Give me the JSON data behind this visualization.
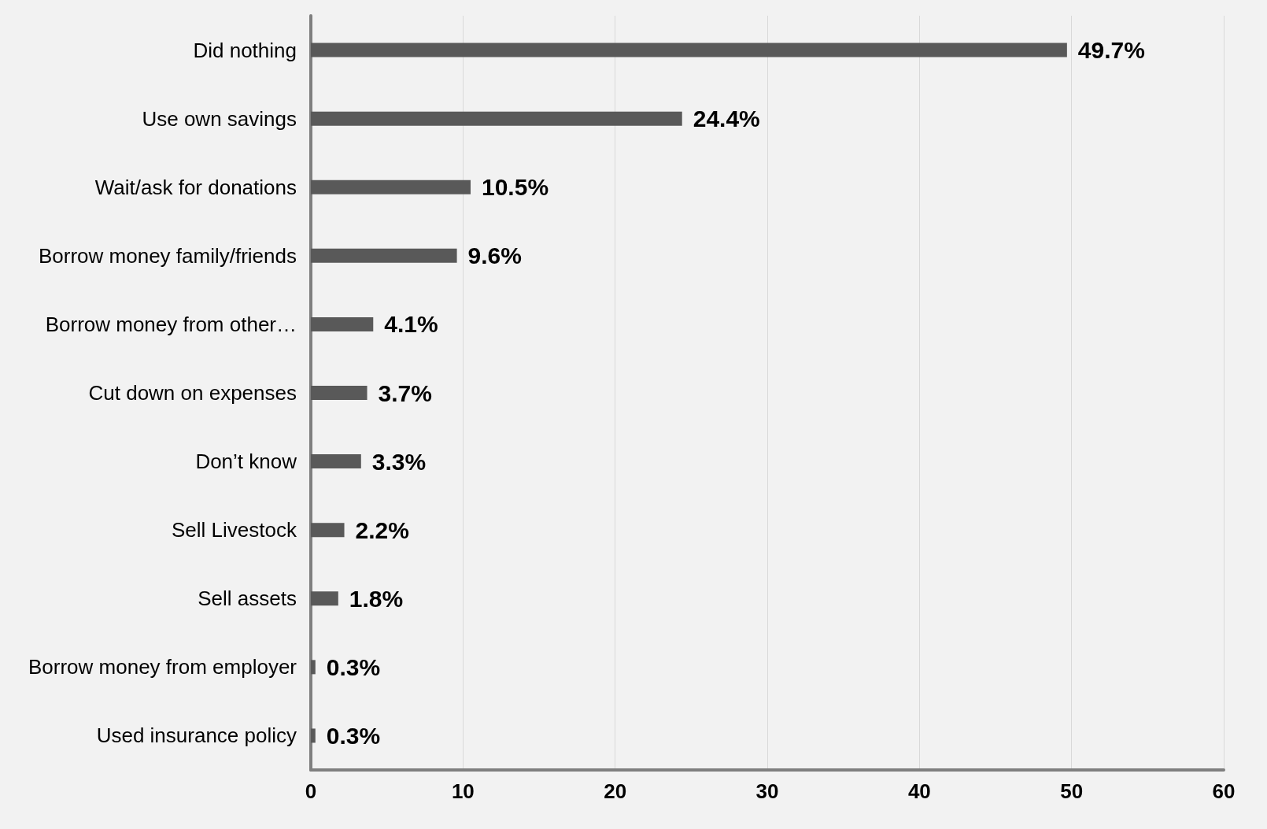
{
  "chart_data": {
    "type": "bar",
    "orientation": "horizontal",
    "categories": [
      "Did nothing",
      "Use own savings",
      "Wait/ask for donations",
      "Borrow money family/friends",
      "Borrow money from other…",
      "Cut down on expenses",
      "Don’t know",
      "Sell Livestock",
      "Sell assets",
      "Borrow money from employer",
      "Used insurance policy"
    ],
    "values": [
      49.7,
      24.4,
      10.5,
      9.6,
      4.1,
      3.7,
      3.3,
      2.2,
      1.8,
      0.3,
      0.3
    ],
    "value_labels": [
      "49.7%",
      "24.4%",
      "10.5%",
      "9.6%",
      "4.1%",
      "3.7%",
      "3.3%",
      "2.2%",
      "1.8%",
      "0.3%",
      "0.3%"
    ],
    "color": "#595959",
    "xlim": [
      0,
      60
    ],
    "xticks": [
      0,
      10,
      20,
      30,
      40,
      50,
      60
    ],
    "grid": "x"
  }
}
